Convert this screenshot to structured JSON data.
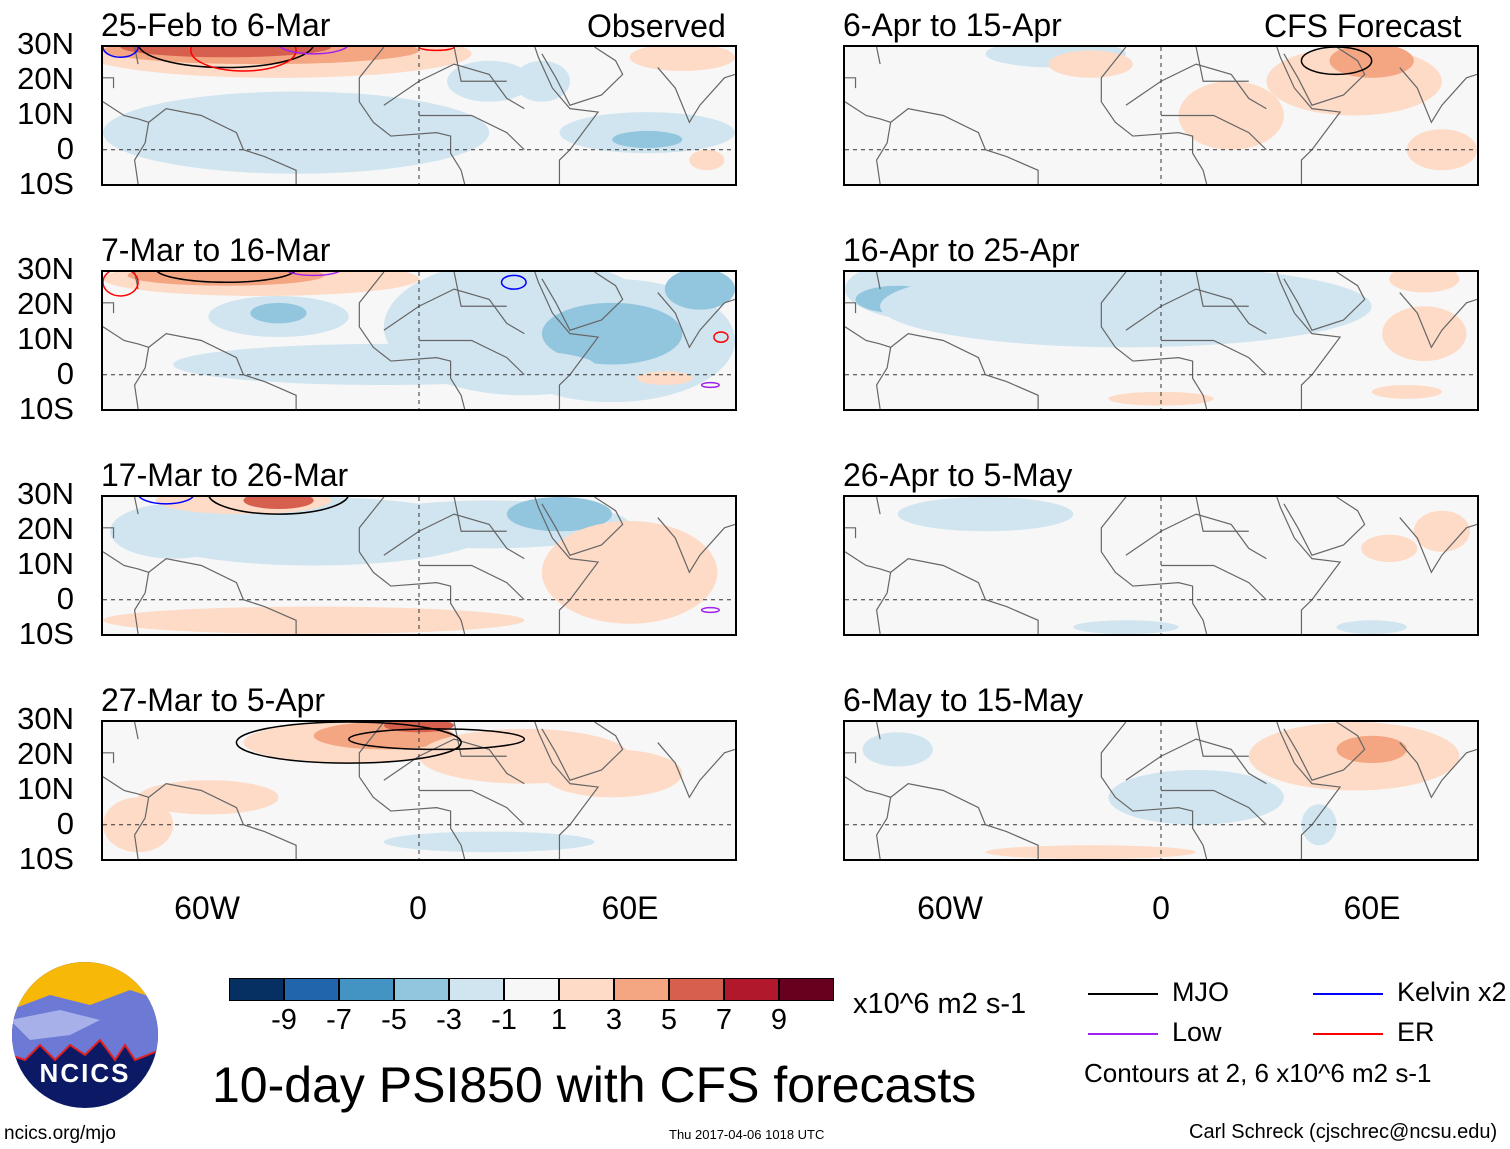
{
  "figure": {
    "title": "10-day PSI850 with CFS forecasts",
    "left_header": "Observed",
    "right_header": "CFS Forecast",
    "units": "x10^6 m2 s-1",
    "contour_note": "Contours at 2, 6 x10^6 m2 s-1",
    "url": "ncics.org/mjo",
    "timestamp": "Thu 2017-04-06 1018 UTC",
    "author": "Carl Schreck (cjschrec@ncsu.edu)",
    "logo_text": "NCICS"
  },
  "panels": [
    {
      "title": "25-Feb to 6-Mar"
    },
    {
      "title": "7-Mar to 16-Mar"
    },
    {
      "title": "17-Mar to 26-Mar"
    },
    {
      "title": "27-Mar to 5-Apr"
    },
    {
      "title": "6-Apr to 15-Apr"
    },
    {
      "title": "16-Apr to 25-Apr"
    },
    {
      "title": "26-Apr to 5-May"
    },
    {
      "title": "6-May to 15-May"
    }
  ],
  "lat_labels": [
    "30N",
    "20N",
    "10N",
    "0",
    "10S"
  ],
  "lon_labels": [
    "60W",
    "0",
    "60E"
  ],
  "colorbar": {
    "labels": [
      "-9",
      "-7",
      "-5",
      "-3",
      "-1",
      "1",
      "3",
      "5",
      "7",
      "9"
    ],
    "colors": [
      "#053061",
      "#2166ac",
      "#4393c3",
      "#92c5de",
      "#d1e5f0",
      "#f7f7f7",
      "#fddbc7",
      "#f4a582",
      "#d6604d",
      "#b2182b",
      "#67001f"
    ]
  },
  "legend": [
    {
      "label": "MJO",
      "color": "#000000"
    },
    {
      "label": "Kelvin x2",
      "color": "#0000ff"
    },
    {
      "label": "Low",
      "color": "#a020f0"
    },
    {
      "label": "ER",
      "color": "#ff0000"
    }
  ]
}
